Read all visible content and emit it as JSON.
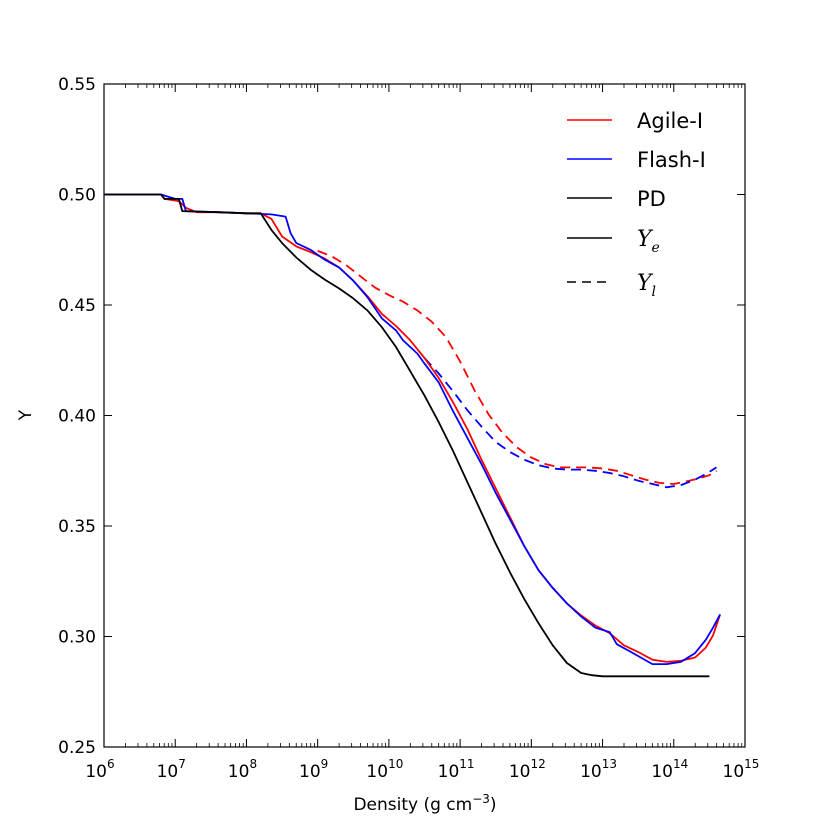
{
  "chart_data": {
    "type": "line",
    "title": "",
    "xlabel_main": "Density (g cm",
    "xlabel_exp": "−3",
    "xlabel_tail": ")",
    "ylabel": "Y",
    "xscale": "log",
    "xlim": [
      1000000.0,
      1000000000000000.0
    ],
    "ylim": [
      0.25,
      0.55
    ],
    "x_tick_exponents": [
      6,
      7,
      8,
      9,
      10,
      11,
      12,
      13,
      14,
      15
    ],
    "x_tick_base": "10",
    "y_ticks": [
      "0.25",
      "0.30",
      "0.35",
      "0.40",
      "0.45",
      "0.50",
      "0.55"
    ],
    "legend_position": "upper-right",
    "legend": {
      "agile": "Agile-I",
      "flash": "Flash-I",
      "pd": "PD",
      "ye_base": "Y",
      "ye_sub": "e",
      "yl_base": "Y",
      "yl_sub": "l"
    },
    "colors": {
      "agile": "#ff0000",
      "flash": "#0000ff",
      "pd": "#000000"
    },
    "series": [
      {
        "key": "agile_ye",
        "name": "Agile-I Ye",
        "color": "#ff0000",
        "dash": "solid",
        "points": [
          [
            6,
            0.5
          ],
          [
            6.8,
            0.5
          ],
          [
            6.85,
            0.498
          ],
          [
            7.05,
            0.497
          ],
          [
            7.15,
            0.494
          ],
          [
            7.3,
            0.492
          ],
          [
            7.6,
            0.492
          ],
          [
            8.0,
            0.4915
          ],
          [
            8.2,
            0.4915
          ],
          [
            8.35,
            0.489
          ],
          [
            8.5,
            0.481
          ],
          [
            8.7,
            0.4765
          ],
          [
            8.9,
            0.474
          ],
          [
            9.1,
            0.471
          ],
          [
            9.3,
            0.467
          ],
          [
            9.5,
            0.461
          ],
          [
            9.7,
            0.454
          ],
          [
            9.9,
            0.446
          ],
          [
            10.1,
            0.4405
          ],
          [
            10.3,
            0.434
          ],
          [
            10.5,
            0.426
          ],
          [
            10.7,
            0.417
          ],
          [
            10.9,
            0.406
          ],
          [
            11.1,
            0.394
          ],
          [
            11.3,
            0.38
          ],
          [
            11.5,
            0.367
          ],
          [
            11.7,
            0.354
          ],
          [
            11.9,
            0.341
          ],
          [
            12.1,
            0.33
          ],
          [
            12.3,
            0.322
          ],
          [
            12.5,
            0.315
          ],
          [
            12.7,
            0.3095
          ],
          [
            12.9,
            0.305
          ],
          [
            13.1,
            0.3015
          ],
          [
            13.3,
            0.296
          ],
          [
            13.5,
            0.293
          ],
          [
            13.7,
            0.2895
          ],
          [
            13.9,
            0.2885
          ],
          [
            14.1,
            0.289
          ],
          [
            14.3,
            0.2905
          ],
          [
            14.45,
            0.295
          ],
          [
            14.55,
            0.3005
          ],
          [
            14.65,
            0.31
          ]
        ]
      },
      {
        "key": "flash_ye",
        "name": "Flash-I Ye",
        "color": "#0000ff",
        "dash": "solid",
        "points": [
          [
            6,
            0.5
          ],
          [
            6.8,
            0.5
          ],
          [
            7.0,
            0.498
          ],
          [
            7.1,
            0.498
          ],
          [
            7.15,
            0.4925
          ],
          [
            7.6,
            0.492
          ],
          [
            8.0,
            0.4915
          ],
          [
            8.35,
            0.491
          ],
          [
            8.55,
            0.49
          ],
          [
            8.62,
            0.4825
          ],
          [
            8.7,
            0.478
          ],
          [
            8.9,
            0.475
          ],
          [
            9.1,
            0.4705
          ],
          [
            9.3,
            0.467
          ],
          [
            9.5,
            0.461
          ],
          [
            9.7,
            0.4535
          ],
          [
            9.9,
            0.444
          ],
          [
            10.1,
            0.4385
          ],
          [
            10.2,
            0.434
          ],
          [
            10.4,
            0.428
          ],
          [
            10.5,
            0.4235
          ],
          [
            10.7,
            0.415
          ],
          [
            10.9,
            0.402
          ],
          [
            11.1,
            0.39
          ],
          [
            11.3,
            0.378
          ],
          [
            11.5,
            0.365
          ],
          [
            11.7,
            0.353
          ],
          [
            11.9,
            0.341
          ],
          [
            12.1,
            0.33
          ],
          [
            12.3,
            0.322
          ],
          [
            12.5,
            0.315
          ],
          [
            12.7,
            0.309
          ],
          [
            12.9,
            0.304
          ],
          [
            13.1,
            0.302
          ],
          [
            13.2,
            0.2965
          ],
          [
            13.4,
            0.293
          ],
          [
            13.7,
            0.2875
          ],
          [
            13.9,
            0.2875
          ],
          [
            14.1,
            0.2885
          ],
          [
            14.3,
            0.2925
          ],
          [
            14.45,
            0.2985
          ],
          [
            14.55,
            0.304
          ],
          [
            14.65,
            0.31
          ]
        ]
      },
      {
        "key": "pd_ye",
        "name": "PD Ye",
        "color": "#000000",
        "dash": "solid",
        "points": [
          [
            6,
            0.5
          ],
          [
            6.8,
            0.5
          ],
          [
            6.85,
            0.498
          ],
          [
            7.05,
            0.498
          ],
          [
            7.1,
            0.4925
          ],
          [
            7.6,
            0.492
          ],
          [
            8.0,
            0.4915
          ],
          [
            8.2,
            0.4915
          ],
          [
            8.35,
            0.484
          ],
          [
            8.5,
            0.478
          ],
          [
            8.7,
            0.4715
          ],
          [
            8.9,
            0.466
          ],
          [
            9.1,
            0.4615
          ],
          [
            9.3,
            0.4575
          ],
          [
            9.5,
            0.453
          ],
          [
            9.7,
            0.4475
          ],
          [
            9.9,
            0.44
          ],
          [
            10.1,
            0.431
          ],
          [
            10.3,
            0.42
          ],
          [
            10.5,
            0.409
          ],
          [
            10.7,
            0.397
          ],
          [
            10.9,
            0.384
          ],
          [
            11.1,
            0.37
          ],
          [
            11.3,
            0.356
          ],
          [
            11.5,
            0.342
          ],
          [
            11.7,
            0.329
          ],
          [
            11.9,
            0.317
          ],
          [
            12.1,
            0.306
          ],
          [
            12.3,
            0.296
          ],
          [
            12.5,
            0.288
          ],
          [
            12.7,
            0.2835
          ],
          [
            12.85,
            0.2825
          ],
          [
            13.0,
            0.282
          ],
          [
            13.5,
            0.282
          ],
          [
            14.0,
            0.282
          ],
          [
            14.5,
            0.282
          ]
        ]
      },
      {
        "key": "agile_yl",
        "name": "Agile-I Yl",
        "color": "#ff0000",
        "dash": "dashed",
        "points": [
          [
            9.0,
            0.4745
          ],
          [
            9.2,
            0.472
          ],
          [
            9.4,
            0.468
          ],
          [
            9.6,
            0.463
          ],
          [
            9.8,
            0.458
          ],
          [
            10.0,
            0.4545
          ],
          [
            10.2,
            0.4515
          ],
          [
            10.4,
            0.4475
          ],
          [
            10.6,
            0.4425
          ],
          [
            10.8,
            0.4355
          ],
          [
            11.0,
            0.4245
          ],
          [
            11.2,
            0.4115
          ],
          [
            11.4,
            0.4005
          ],
          [
            11.6,
            0.392
          ],
          [
            11.8,
            0.3855
          ],
          [
            12.0,
            0.381
          ],
          [
            12.2,
            0.378
          ],
          [
            12.4,
            0.3765
          ],
          [
            12.6,
            0.3765
          ],
          [
            12.8,
            0.3765
          ],
          [
            13.0,
            0.376
          ],
          [
            13.2,
            0.375
          ],
          [
            13.4,
            0.373
          ],
          [
            13.6,
            0.371
          ],
          [
            13.8,
            0.3695
          ],
          [
            14.0,
            0.369
          ],
          [
            14.15,
            0.37
          ],
          [
            14.35,
            0.3715
          ],
          [
            14.5,
            0.373
          ],
          [
            14.6,
            0.375
          ]
        ]
      },
      {
        "key": "flash_yl",
        "name": "Flash-I Yl",
        "color": "#0000ff",
        "dash": "dashed",
        "points": [
          [
            10.5,
            0.426
          ],
          [
            10.7,
            0.419
          ],
          [
            10.9,
            0.411
          ],
          [
            11.1,
            0.4025
          ],
          [
            11.3,
            0.395
          ],
          [
            11.5,
            0.388
          ],
          [
            11.7,
            0.3835
          ],
          [
            11.9,
            0.38
          ],
          [
            12.1,
            0.3775
          ],
          [
            12.3,
            0.376
          ],
          [
            12.5,
            0.3755
          ],
          [
            12.7,
            0.3755
          ],
          [
            12.9,
            0.375
          ],
          [
            13.1,
            0.374
          ],
          [
            13.3,
            0.3725
          ],
          [
            13.5,
            0.3705
          ],
          [
            13.7,
            0.369
          ],
          [
            13.9,
            0.3675
          ],
          [
            14.1,
            0.3685
          ],
          [
            14.3,
            0.371
          ],
          [
            14.45,
            0.3735
          ],
          [
            14.6,
            0.3765
          ]
        ]
      }
    ]
  }
}
